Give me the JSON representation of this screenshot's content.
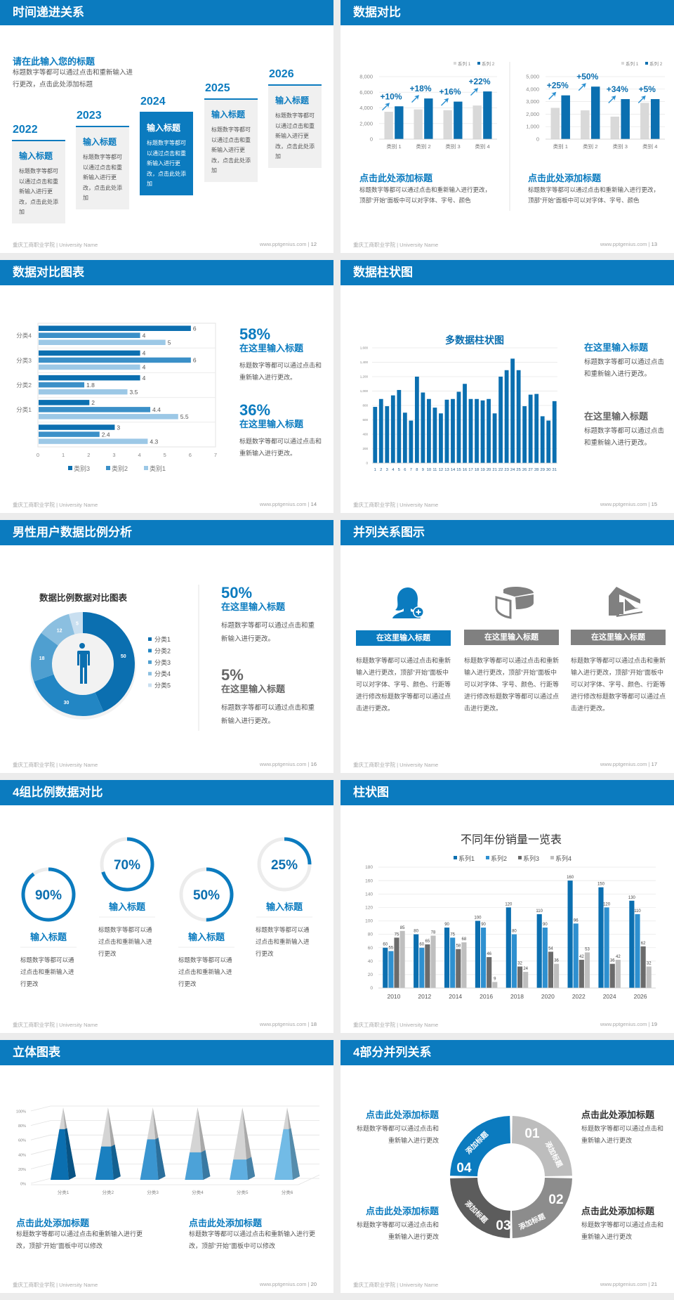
{
  "footer": {
    "school": "重庆工商职业学院 | University Name",
    "site": "www.pptgenius.com"
  },
  "colors": {
    "primary": "#0b7bbf",
    "dark_blue": "#0b6fb0",
    "gray": "#808080",
    "light_gray": "#d9d9d9"
  },
  "slides": {
    "s12": {
      "title": "时间递进关系",
      "page": "12",
      "heading": "请在此输入您的标题",
      "desc": "标题数字等都可以通过点击和重新输入进行更改，点击此处添加标题",
      "items": [
        {
          "year": "2022",
          "title": "输入标题",
          "text": "标题数字等都可以通过点击和重新输入进行更改，点击此处添加"
        },
        {
          "year": "2023",
          "title": "输入标题",
          "text": "标题数字等都可以通过点击和重新输入进行更改，点击此处添加"
        },
        {
          "year": "2024",
          "title": "输入标题",
          "text": "标题数字等都可以通过点击和重新输入进行更改，点击此处添加"
        },
        {
          "year": "2025",
          "title": "输入标题",
          "text": "标题数字等都可以通过点击和重新输入进行更改，点击此处添加"
        },
        {
          "year": "2026",
          "title": "输入标题",
          "text": "标题数字等都可以通过点击和重新输入进行更改，点击此处添加"
        }
      ]
    },
    "s13": {
      "title": "数据对比",
      "page": "13",
      "blocks": [
        {
          "title": "点击此处添加标题",
          "text": "标题数字等都可以通过点击和重新输入进行更改，顶部“开始”面板中可以对字体、字号、颜色"
        },
        {
          "title": "点击此处添加标题",
          "text": "标题数字等都可以通过点击和重新输入进行更改，顶部“开始”面板中可以对字体、字号、颜色"
        }
      ]
    },
    "s14": {
      "title": "数据对比图表",
      "page": "14",
      "stats": [
        {
          "value": "58%",
          "title": "在这里输入标题",
          "text": "标题数字等都可以通过点击和重新输入进行更改。"
        },
        {
          "value": "36%",
          "title": "在这里输入标题",
          "text": "标题数字等都可以通过点击和重新输入进行更改。"
        }
      ]
    },
    "s15": {
      "title": "数据柱状图",
      "page": "15",
      "blocks": [
        {
          "title": "在这里输入标题",
          "text": "标题数字等都可以通过点击和重新输入进行更改。"
        },
        {
          "title": "在这里输入标题",
          "text": "标题数字等都可以通过点击和重新输入进行更改。"
        }
      ]
    },
    "s16": {
      "title": "男性用户数据比例分析",
      "page": "16",
      "stats": [
        {
          "value": "50%",
          "title": "在这里输入标题",
          "text": "标题数字等都可以通过点击和重新输入进行更改。"
        },
        {
          "value": "5%",
          "title": "在这里输入标题",
          "text": "标题数字等都可以通过点击和重新输入进行更改。"
        }
      ]
    },
    "s17": {
      "title": "并列关系图示",
      "page": "17",
      "items": [
        {
          "icon": "user-add-icon",
          "label": "在这里输入标题",
          "text": "标题数字等都可以通过点击和重新输入进行更改，顶部“开始”面板中可以对字体、字号、颜色、行距等进行修改标题数字等都可以通过点击进行更改。"
        },
        {
          "icon": "pie-chart-icon",
          "label": "在这里输入标题",
          "text": "标题数字等都可以通过点击和重新输入进行更改，顶部“开始”面板中可以对字体、字号、颜色、行距等进行修改标题数字等都可以通过点击进行更改。"
        },
        {
          "icon": "building-icon",
          "label": "在这里输入标题",
          "text": "标题数字等都可以通过点击和重新输入进行更改，顶部“开始”面板中可以对字体、字号、颜色、行距等进行修改标题数字等都可以通过点击进行更改。"
        }
      ]
    },
    "s18": {
      "title": "4组比例数据对比",
      "page": "18",
      "items": [
        {
          "percent": 90,
          "label": "90%",
          "title": "输入标题",
          "text": "标题数字等都可以通过点击和重新输入进行更改"
        },
        {
          "percent": 70,
          "label": "70%",
          "title": "输入标题",
          "text": "标题数字等都可以通过点击和重新输入进行更改"
        },
        {
          "percent": 50,
          "label": "50%",
          "title": "输入标题",
          "text": "标题数字等都可以通过点击和重新输入进行更改"
        },
        {
          "percent": 25,
          "label": "25%",
          "title": "输入标题",
          "text": "标题数字等都可以通过点击和重新输入进行更改"
        }
      ]
    },
    "s19": {
      "title": "柱状图",
      "page": "19"
    },
    "s20": {
      "title": "立体图表",
      "page": "20",
      "blocks": [
        {
          "title": "点击此处添加标题",
          "text": "标题数字等都可以通过点击和重新输入进行更改，顶部“开始”面板中可以修改"
        },
        {
          "title": "点击此处添加标题",
          "text": "标题数字等都可以通过点击和重新输入进行更改，顶部“开始”面板中可以修改"
        }
      ]
    },
    "s21": {
      "title": "4部分并列关系",
      "page": "21",
      "segments": [
        {
          "num": "01",
          "label": "添加标题",
          "color": "#bdbdbd"
        },
        {
          "num": "02",
          "label": "添加标题",
          "color": "#8c8c8c"
        },
        {
          "num": "03",
          "label": "添加标题",
          "color": "#5c5c5c"
        },
        {
          "num": "04",
          "label": "添加标题",
          "color": "#0b7bbf"
        }
      ],
      "blocks": [
        {
          "title": "点击此处添加标题",
          "text": "标题数字等都可以通过点击和重新输入进行更改"
        },
        {
          "title": "点击此处添加标题",
          "text": "标题数字等都可以通过点击和重新输入进行更改"
        },
        {
          "title": "点击此处添加标题",
          "text": "标题数字等都可以通过点击和重新输入进行更改"
        },
        {
          "title": "点击此处添加标题",
          "text": "标题数字等都可以通过点击和重新输入进行更改"
        }
      ]
    }
  },
  "chart_data": [
    {
      "type": "bar",
      "categories": [
        "类别 1",
        "类别 2",
        "类别 3",
        "类别 4"
      ],
      "series": [
        {
          "name": "系列 1",
          "values": [
            3500,
            3800,
            3700,
            4300
          ]
        },
        {
          "name": "系列 2",
          "values": [
            4200,
            5200,
            4800,
            6100
          ]
        }
      ],
      "annotations": [
        "+10%",
        "+18%",
        "+16%",
        "+22%"
      ],
      "ylim": [
        0,
        8000
      ],
      "yticks": [
        0,
        2000,
        4000,
        6000,
        8000
      ],
      "grid": true,
      "legend": "top-right",
      "colors": [
        "#d9d9d9",
        "#0b6fb0"
      ]
    },
    {
      "type": "bar",
      "categories": [
        "类别 1",
        "类别 2",
        "类别 3",
        "类别 4"
      ],
      "series": [
        {
          "name": "系列 1",
          "values": [
            2500,
            2300,
            1800,
            2900
          ]
        },
        {
          "name": "系列 2",
          "values": [
            3500,
            4200,
            3200,
            3200
          ]
        }
      ],
      "annotations": [
        "+25%",
        "+50%",
        "+34%",
        "+5%"
      ],
      "ylim": [
        0,
        5000
      ],
      "yticks": [
        0,
        1000,
        2000,
        3000,
        4000,
        5000
      ],
      "grid": true,
      "legend": "top-right",
      "colors": [
        "#d9d9d9",
        "#0b6fb0"
      ]
    },
    {
      "type": "bar",
      "orientation": "horizontal",
      "categories": [
        "",
        "分类1",
        "分类2",
        "分类3",
        "分类4"
      ],
      "series": [
        {
          "name": "类别3",
          "values": [
            3,
            2,
            4,
            4,
            6
          ]
        },
        {
          "name": "类别2",
          "values": [
            2.4,
            4.4,
            1.8,
            6,
            4
          ]
        },
        {
          "name": "类别1",
          "values": [
            4.3,
            5.5,
            3.5,
            4,
            5
          ]
        }
      ],
      "xlim": [
        0,
        7
      ],
      "xticks": [
        0,
        1,
        2,
        3,
        4,
        5,
        6,
        7
      ],
      "legend": "bottom",
      "data_labels": true,
      "colors": [
        "#0b6fb0",
        "#3b90c8",
        "#9cc8e6"
      ]
    },
    {
      "type": "bar",
      "title": "多数据柱状图",
      "categories": [
        "1",
        "2",
        "3",
        "4",
        "5",
        "6",
        "7",
        "8",
        "9",
        "10",
        "11",
        "12",
        "13",
        "14",
        "15",
        "16",
        "17",
        "18",
        "19",
        "20",
        "21",
        "22",
        "23",
        "24",
        "25",
        "26",
        "27",
        "28",
        "29",
        "30",
        "31"
      ],
      "values": [
        780,
        890,
        790,
        940,
        1015,
        700,
        590,
        1200,
        980,
        890,
        770,
        690,
        880,
        890,
        990,
        1100,
        890,
        890,
        870,
        890,
        690,
        1200,
        1290,
        1450,
        1290,
        790,
        950,
        960,
        650,
        590,
        860
      ],
      "ylim": [
        0,
        1600
      ],
      "yticks": [
        0,
        200,
        400,
        600,
        800,
        1000,
        1200,
        1400,
        1600
      ],
      "grid": true,
      "colors": [
        "#0b6fb0"
      ]
    },
    {
      "type": "pie",
      "variant": "donut",
      "title": "数据比例数据对比图表",
      "categories": [
        "分类1",
        "分类2",
        "分类3",
        "分类4",
        "分类5"
      ],
      "values": [
        50,
        30,
        18,
        12,
        5
      ],
      "legend": "right",
      "colors": [
        "#0b6fb0",
        "#2286c4",
        "#4f9fd0",
        "#8bbfe0",
        "#c9dff0"
      ]
    },
    {
      "type": "bar",
      "title": "不同年份销量一览表",
      "categories": [
        "2010",
        "2012",
        "2014",
        "2016",
        "2018",
        "2020",
        "2022",
        "2024",
        "2026"
      ],
      "series": [
        {
          "name": "系列1",
          "values": [
            60,
            80,
            90,
            100,
            120,
            110,
            160,
            150,
            130
          ]
        },
        {
          "name": "系列2",
          "values": [
            55,
            60,
            75,
            90,
            80,
            90,
            96,
            120,
            110
          ]
        },
        {
          "name": "系列3",
          "values": [
            75,
            65,
            58,
            46,
            32,
            54,
            42,
            36,
            62
          ]
        },
        {
          "name": "系列4",
          "values": [
            85,
            78,
            68,
            9,
            24,
            36,
            53,
            42,
            32
          ]
        }
      ],
      "ylim": [
        0,
        180
      ],
      "yticks": [
        0,
        20,
        40,
        60,
        80,
        100,
        120,
        140,
        160,
        180
      ],
      "grid": true,
      "legend": "top",
      "data_labels": true,
      "colors": [
        "#0b6fb0",
        "#2e90d0",
        "#6b6b6b",
        "#bfbfbf"
      ]
    },
    {
      "type": "bar",
      "variant": "3d-pyramid",
      "categories": [
        "分类1",
        "分类2",
        "分类3",
        "分类4",
        "分类5",
        "分类6"
      ],
      "values": [
        70,
        46,
        56,
        38,
        28,
        70
      ],
      "ylim": [
        0,
        100
      ],
      "yticks": [
        "0%",
        "20%",
        "40%",
        "60%",
        "80%",
        "100%"
      ],
      "grid": true,
      "colors": [
        "#0b6fb0",
        "#1a80c0",
        "#3a95d0",
        "#4ca2d8",
        "#5eaee0",
        "#72bbe6"
      ]
    }
  ]
}
